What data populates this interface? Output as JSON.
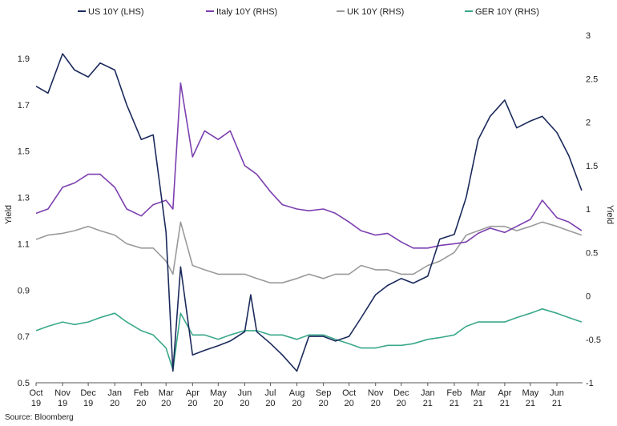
{
  "source_note": "Source: Bloomberg",
  "chart_data": {
    "type": "line",
    "title": "",
    "ylabel_left": "Yield",
    "ylabel_right": "Yield",
    "legend_position": "top",
    "grid": false,
    "left_axis": {
      "ylim": [
        0.5,
        2.0
      ],
      "ticks": [
        "0.5",
        "0.7",
        "0.9",
        "1.1",
        "1.3",
        "1.5",
        "1.7",
        "1.9"
      ]
    },
    "right_axis": {
      "ylim": [
        -1,
        3
      ],
      "ticks": [
        "-1",
        "-0.5",
        "0",
        "0.5",
        "1",
        "1.5",
        "2",
        "2.5",
        "3"
      ]
    },
    "x_ticks": [
      {
        "month": "Oct",
        "year": "19"
      },
      {
        "month": "Nov",
        "year": "19"
      },
      {
        "month": "Dec",
        "year": "19"
      },
      {
        "month": "Jan",
        "year": "20"
      },
      {
        "month": "Feb",
        "year": "20"
      },
      {
        "month": "Mar",
        "year": "20"
      },
      {
        "month": "Apr",
        "year": "20"
      },
      {
        "month": "May",
        "year": "20"
      },
      {
        "month": "Jun",
        "year": "20"
      },
      {
        "month": "Jul",
        "year": "20"
      },
      {
        "month": "Aug",
        "year": "20"
      },
      {
        "month": "Sep",
        "year": "20"
      },
      {
        "month": "Oct",
        "year": "20"
      },
      {
        "month": "Nov",
        "year": "20"
      },
      {
        "month": "Dec",
        "year": "20"
      },
      {
        "month": "Jan",
        "year": "21"
      },
      {
        "month": "Feb",
        "year": "21"
      },
      {
        "month": "Mar",
        "year": "21"
      },
      {
        "month": "Apr",
        "year": "21"
      },
      {
        "month": "May",
        "year": "21"
      },
      {
        "month": "Jun",
        "year": "21"
      }
    ],
    "series": [
      {
        "name": "US 10Y (LHS)",
        "axis": "left",
        "color": "#1b2a5c",
        "x": [
          "2019-10-01",
          "2019-10-15",
          "2019-11-01",
          "2019-11-15",
          "2019-12-01",
          "2019-12-15",
          "2020-01-01",
          "2020-01-15",
          "2020-02-01",
          "2020-02-15",
          "2020-03-01",
          "2020-03-09",
          "2020-03-18",
          "2020-04-01",
          "2020-04-15",
          "2020-05-01",
          "2020-05-15",
          "2020-06-01",
          "2020-06-08",
          "2020-06-15",
          "2020-07-01",
          "2020-07-15",
          "2020-08-01",
          "2020-08-15",
          "2020-09-01",
          "2020-09-15",
          "2020-10-01",
          "2020-10-15",
          "2020-11-01",
          "2020-11-15",
          "2020-12-01",
          "2020-12-15",
          "2021-01-01",
          "2021-01-15",
          "2021-02-01",
          "2021-02-15",
          "2021-03-01",
          "2021-03-15",
          "2021-04-01",
          "2021-04-15",
          "2021-05-01",
          "2021-05-15",
          "2021-06-01",
          "2021-06-15",
          "2021-06-30"
        ],
        "values": [
          1.78,
          1.75,
          1.92,
          1.85,
          1.82,
          1.88,
          1.85,
          1.7,
          1.55,
          1.57,
          1.15,
          0.55,
          1.0,
          0.62,
          0.64,
          0.66,
          0.68,
          0.72,
          0.88,
          0.72,
          0.67,
          0.62,
          0.55,
          0.7,
          0.7,
          0.68,
          0.7,
          0.78,
          0.88,
          0.92,
          0.95,
          0.93,
          0.96,
          1.12,
          1.14,
          1.3,
          1.55,
          1.65,
          1.72,
          1.6,
          1.63,
          1.65,
          1.58,
          1.48,
          1.33
        ]
      },
      {
        "name": "Italy 10Y (RHS)",
        "axis": "right",
        "color": "#7b3fb0",
        "x": [
          "2019-10-01",
          "2019-10-15",
          "2019-11-01",
          "2019-11-15",
          "2019-12-01",
          "2019-12-15",
          "2020-01-01",
          "2020-01-15",
          "2020-02-01",
          "2020-02-15",
          "2020-03-01",
          "2020-03-09",
          "2020-03-18",
          "2020-04-01",
          "2020-04-15",
          "2020-05-01",
          "2020-05-15",
          "2020-06-01",
          "2020-06-15",
          "2020-07-01",
          "2020-07-15",
          "2020-08-01",
          "2020-08-15",
          "2020-09-01",
          "2020-09-15",
          "2020-10-01",
          "2020-10-15",
          "2020-11-01",
          "2020-11-15",
          "2020-12-01",
          "2020-12-15",
          "2021-01-01",
          "2021-01-15",
          "2021-02-01",
          "2021-02-15",
          "2021-03-01",
          "2021-03-15",
          "2021-04-01",
          "2021-04-15",
          "2021-05-01",
          "2021-05-15",
          "2021-06-01",
          "2021-06-15",
          "2021-06-30"
        ],
        "values": [
          0.95,
          1.0,
          1.25,
          1.3,
          1.4,
          1.4,
          1.25,
          1.0,
          0.92,
          1.05,
          1.1,
          1.0,
          2.45,
          1.6,
          1.9,
          1.8,
          1.9,
          1.5,
          1.4,
          1.2,
          1.05,
          1.0,
          0.98,
          1.0,
          0.95,
          0.85,
          0.75,
          0.7,
          0.72,
          0.62,
          0.55,
          0.55,
          0.58,
          0.6,
          0.62,
          0.72,
          0.78,
          0.73,
          0.8,
          0.88,
          1.1,
          0.9,
          0.85,
          0.75
        ]
      },
      {
        "name": "UK 10Y (RHS)",
        "axis": "right",
        "color": "#9a9a9a",
        "x": [
          "2019-10-01",
          "2019-10-15",
          "2019-11-01",
          "2019-11-15",
          "2019-12-01",
          "2019-12-15",
          "2020-01-01",
          "2020-01-15",
          "2020-02-01",
          "2020-02-15",
          "2020-03-01",
          "2020-03-09",
          "2020-03-18",
          "2020-04-01",
          "2020-04-15",
          "2020-05-01",
          "2020-05-15",
          "2020-06-01",
          "2020-06-15",
          "2020-07-01",
          "2020-07-15",
          "2020-08-01",
          "2020-08-15",
          "2020-09-01",
          "2020-09-15",
          "2020-10-01",
          "2020-10-15",
          "2020-11-01",
          "2020-11-15",
          "2020-12-01",
          "2020-12-15",
          "2021-01-01",
          "2021-01-15",
          "2021-02-01",
          "2021-02-15",
          "2021-03-01",
          "2021-03-15",
          "2021-04-01",
          "2021-04-15",
          "2021-05-01",
          "2021-05-15",
          "2021-06-01",
          "2021-06-15",
          "2021-06-30"
        ],
        "values": [
          0.65,
          0.7,
          0.72,
          0.75,
          0.8,
          0.75,
          0.7,
          0.6,
          0.55,
          0.55,
          0.4,
          0.25,
          0.85,
          0.35,
          0.3,
          0.25,
          0.25,
          0.25,
          0.2,
          0.15,
          0.15,
          0.2,
          0.25,
          0.2,
          0.25,
          0.25,
          0.35,
          0.3,
          0.3,
          0.25,
          0.25,
          0.35,
          0.4,
          0.5,
          0.7,
          0.75,
          0.8,
          0.8,
          0.75,
          0.8,
          0.85,
          0.8,
          0.75,
          0.7
        ]
      },
      {
        "name": "GER 10Y (RHS)",
        "axis": "right",
        "color": "#3aa88a",
        "x": [
          "2019-10-01",
          "2019-10-15",
          "2019-11-01",
          "2019-11-15",
          "2019-12-01",
          "2019-12-15",
          "2020-01-01",
          "2020-01-15",
          "2020-02-01",
          "2020-02-15",
          "2020-03-01",
          "2020-03-09",
          "2020-03-18",
          "2020-04-01",
          "2020-04-15",
          "2020-05-01",
          "2020-05-15",
          "2020-06-01",
          "2020-06-15",
          "2020-07-01",
          "2020-07-15",
          "2020-08-01",
          "2020-08-15",
          "2020-09-01",
          "2020-09-15",
          "2020-10-01",
          "2020-10-15",
          "2020-11-01",
          "2020-11-15",
          "2020-12-01",
          "2020-12-15",
          "2021-01-01",
          "2021-01-15",
          "2021-02-01",
          "2021-02-15",
          "2021-03-01",
          "2021-03-15",
          "2021-04-01",
          "2021-04-15",
          "2021-05-01",
          "2021-05-15",
          "2021-06-01",
          "2021-06-15",
          "2021-06-30"
        ],
        "values": [
          -0.4,
          -0.35,
          -0.3,
          -0.33,
          -0.3,
          -0.25,
          -0.2,
          -0.3,
          -0.4,
          -0.45,
          -0.6,
          -0.85,
          -0.2,
          -0.45,
          -0.45,
          -0.5,
          -0.45,
          -0.4,
          -0.4,
          -0.45,
          -0.45,
          -0.5,
          -0.45,
          -0.45,
          -0.5,
          -0.55,
          -0.6,
          -0.6,
          -0.57,
          -0.57,
          -0.55,
          -0.5,
          -0.48,
          -0.45,
          -0.35,
          -0.3,
          -0.3,
          -0.3,
          -0.25,
          -0.2,
          -0.15,
          -0.2,
          -0.25,
          -0.3
        ]
      }
    ]
  }
}
